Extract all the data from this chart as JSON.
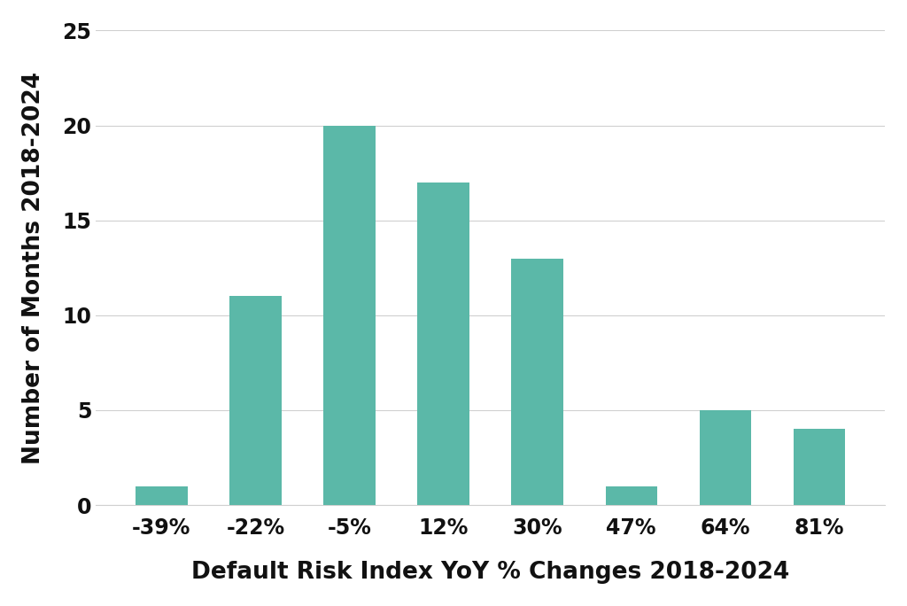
{
  "categories": [
    "-39%",
    "-22%",
    "-5%",
    "12%",
    "30%",
    "47%",
    "64%",
    "81%"
  ],
  "values": [
    1,
    11,
    20,
    17,
    13,
    1,
    5,
    4
  ],
  "bar_color": "#5BB8A8",
  "xlabel": "Default Risk Index YoY % Changes 2018-2024",
  "ylabel": "Number of Months 2018-2024",
  "ylim": [
    0,
    25
  ],
  "yticks": [
    0,
    5,
    10,
    15,
    20,
    25
  ],
  "grid_color": "#d0d0d0",
  "grid_linewidth": 0.8,
  "background_color": "#ffffff",
  "xlabel_fontsize": 19,
  "ylabel_fontsize": 19,
  "xtick_fontsize": 17,
  "ytick_fontsize": 17,
  "bar_width": 0.55,
  "text_color": "#111111"
}
